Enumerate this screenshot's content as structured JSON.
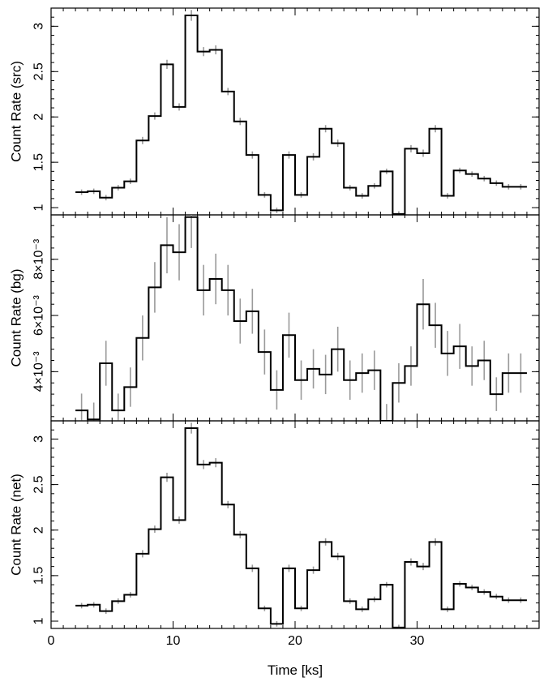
{
  "chart_data": [
    {
      "type": "line",
      "panel": "src",
      "ylabel": "Count Rate (src)",
      "ylim": [
        0.92,
        3.2
      ],
      "yticks": [
        1,
        1.5,
        2,
        2.5,
        3
      ],
      "ytick_labels": [
        "1",
        "1.5",
        "2",
        "2.5",
        "3"
      ],
      "xlim": [
        0,
        40
      ],
      "series": [
        {
          "x": [
            2.5,
            3.5,
            4.5,
            5.5,
            6.5,
            7.5,
            8.5,
            9.5,
            10.5,
            11.5,
            12.5,
            13.5,
            14.5,
            15.5,
            16.5,
            17.5,
            18.5,
            19.5,
            20.5,
            21.5,
            22.5,
            23.5,
            24.5,
            25.5,
            26.5,
            27.5,
            28.5,
            29.5,
            30.5,
            31.5,
            32.5,
            33.5,
            34.5,
            35.5,
            36.5,
            37.5,
            38.5
          ],
          "y": [
            1.17,
            1.18,
            1.11,
            1.22,
            1.29,
            1.74,
            2.01,
            2.58,
            2.11,
            3.12,
            2.72,
            2.74,
            2.28,
            1.95,
            1.58,
            1.14,
            0.97,
            1.58,
            1.14,
            1.56,
            1.87,
            1.71,
            1.22,
            1.13,
            1.24,
            1.4,
            0.93,
            1.65,
            1.6,
            1.87,
            1.13,
            1.41,
            1.37,
            1.32,
            1.27,
            1.23,
            1.23
          ],
          "err": [
            0.03,
            0.03,
            0.03,
            0.03,
            0.03,
            0.04,
            0.04,
            0.05,
            0.04,
            0.06,
            0.05,
            0.05,
            0.04,
            0.04,
            0.04,
            0.03,
            0.03,
            0.04,
            0.03,
            0.04,
            0.04,
            0.04,
            0.03,
            0.03,
            0.03,
            0.03,
            0.03,
            0.04,
            0.04,
            0.04,
            0.03,
            0.03,
            0.03,
            0.03,
            0.03,
            0.03,
            0.03
          ]
        }
      ]
    },
    {
      "type": "line",
      "panel": "bg",
      "ylabel": "Count Rate (bg)",
      "ylim": [
        0.00225,
        0.00958
      ],
      "yticks": [
        0.004,
        0.006,
        0.008
      ],
      "ytick_labels": [
        "4×10⁻³",
        "6×10⁻³",
        "8×10⁻³"
      ],
      "xlim": [
        0,
        40
      ],
      "series": [
        {
          "x": [
            2.5,
            3.5,
            4.5,
            5.5,
            6.5,
            7.5,
            8.5,
            9.5,
            10.5,
            11.5,
            12.5,
            13.5,
            14.5,
            15.5,
            16.5,
            17.5,
            18.5,
            19.5,
            20.5,
            21.5,
            22.5,
            23.5,
            24.5,
            25.5,
            26.5,
            27.5,
            28.5,
            29.5,
            30.5,
            31.5,
            32.5,
            33.5,
            34.5,
            35.5,
            36.5,
            37.5,
            38.5
          ],
          "y": [
            0.00262,
            0.0023,
            0.0043,
            0.00262,
            0.00345,
            0.0052,
            0.007,
            0.0085,
            0.00825,
            0.0095,
            0.0069,
            0.0073,
            0.0069,
            0.0058,
            0.00615,
            0.0047,
            0.00335,
            0.0053,
            0.0037,
            0.0041,
            0.0039,
            0.0048,
            0.0037,
            0.00395,
            0.00405,
            0.00225,
            0.0036,
            0.0042,
            0.0064,
            0.00565,
            0.00465,
            0.0049,
            0.0042,
            0.0044,
            0.0032,
            0.00395,
            0.00395
          ],
          "err": [
            0.0006,
            0.0006,
            0.0008,
            0.0006,
            0.0007,
            0.0008,
            0.0009,
            0.001,
            0.001,
            0.0011,
            0.0009,
            0.0009,
            0.0009,
            0.0008,
            0.0008,
            0.0008,
            0.0007,
            0.0008,
            0.0007,
            0.0007,
            0.0007,
            0.0008,
            0.0007,
            0.0007,
            0.0007,
            0.0006,
            0.0007,
            0.0007,
            0.0009,
            0.0008,
            0.0008,
            0.0008,
            0.0007,
            0.0007,
            0.0006,
            0.0007,
            0.0007
          ]
        }
      ]
    },
    {
      "type": "line",
      "panel": "net",
      "ylabel": "Count Rate (net)",
      "ylim": [
        0.92,
        3.2
      ],
      "yticks": [
        1,
        1.5,
        2,
        2.5,
        3
      ],
      "ytick_labels": [
        "1",
        "1.5",
        "2",
        "2.5",
        "3"
      ],
      "xlim": [
        0,
        40
      ],
      "xlabel": "Time [ks]",
      "xticks": [
        0,
        10,
        20,
        30
      ],
      "xtick_labels": [
        "0",
        "10",
        "20",
        "30"
      ],
      "series": [
        {
          "x": [
            2.5,
            3.5,
            4.5,
            5.5,
            6.5,
            7.5,
            8.5,
            9.5,
            10.5,
            11.5,
            12.5,
            13.5,
            14.5,
            15.5,
            16.5,
            17.5,
            18.5,
            19.5,
            20.5,
            21.5,
            22.5,
            23.5,
            24.5,
            25.5,
            26.5,
            27.5,
            28.5,
            29.5,
            30.5,
            31.5,
            32.5,
            33.5,
            34.5,
            35.5,
            36.5,
            37.5,
            38.5
          ],
          "y": [
            1.17,
            1.18,
            1.11,
            1.22,
            1.29,
            1.74,
            2.01,
            2.58,
            2.11,
            3.12,
            2.72,
            2.74,
            2.28,
            1.95,
            1.58,
            1.14,
            0.97,
            1.58,
            1.14,
            1.56,
            1.87,
            1.71,
            1.22,
            1.13,
            1.24,
            1.4,
            0.93,
            1.65,
            1.6,
            1.87,
            1.13,
            1.41,
            1.37,
            1.32,
            1.27,
            1.23,
            1.23
          ],
          "err": [
            0.03,
            0.03,
            0.03,
            0.03,
            0.03,
            0.04,
            0.04,
            0.05,
            0.04,
            0.06,
            0.05,
            0.05,
            0.04,
            0.04,
            0.04,
            0.03,
            0.03,
            0.04,
            0.03,
            0.04,
            0.04,
            0.04,
            0.03,
            0.03,
            0.03,
            0.03,
            0.03,
            0.04,
            0.04,
            0.04,
            0.03,
            0.03,
            0.03,
            0.03,
            0.03,
            0.03,
            0.03
          ]
        }
      ]
    }
  ]
}
